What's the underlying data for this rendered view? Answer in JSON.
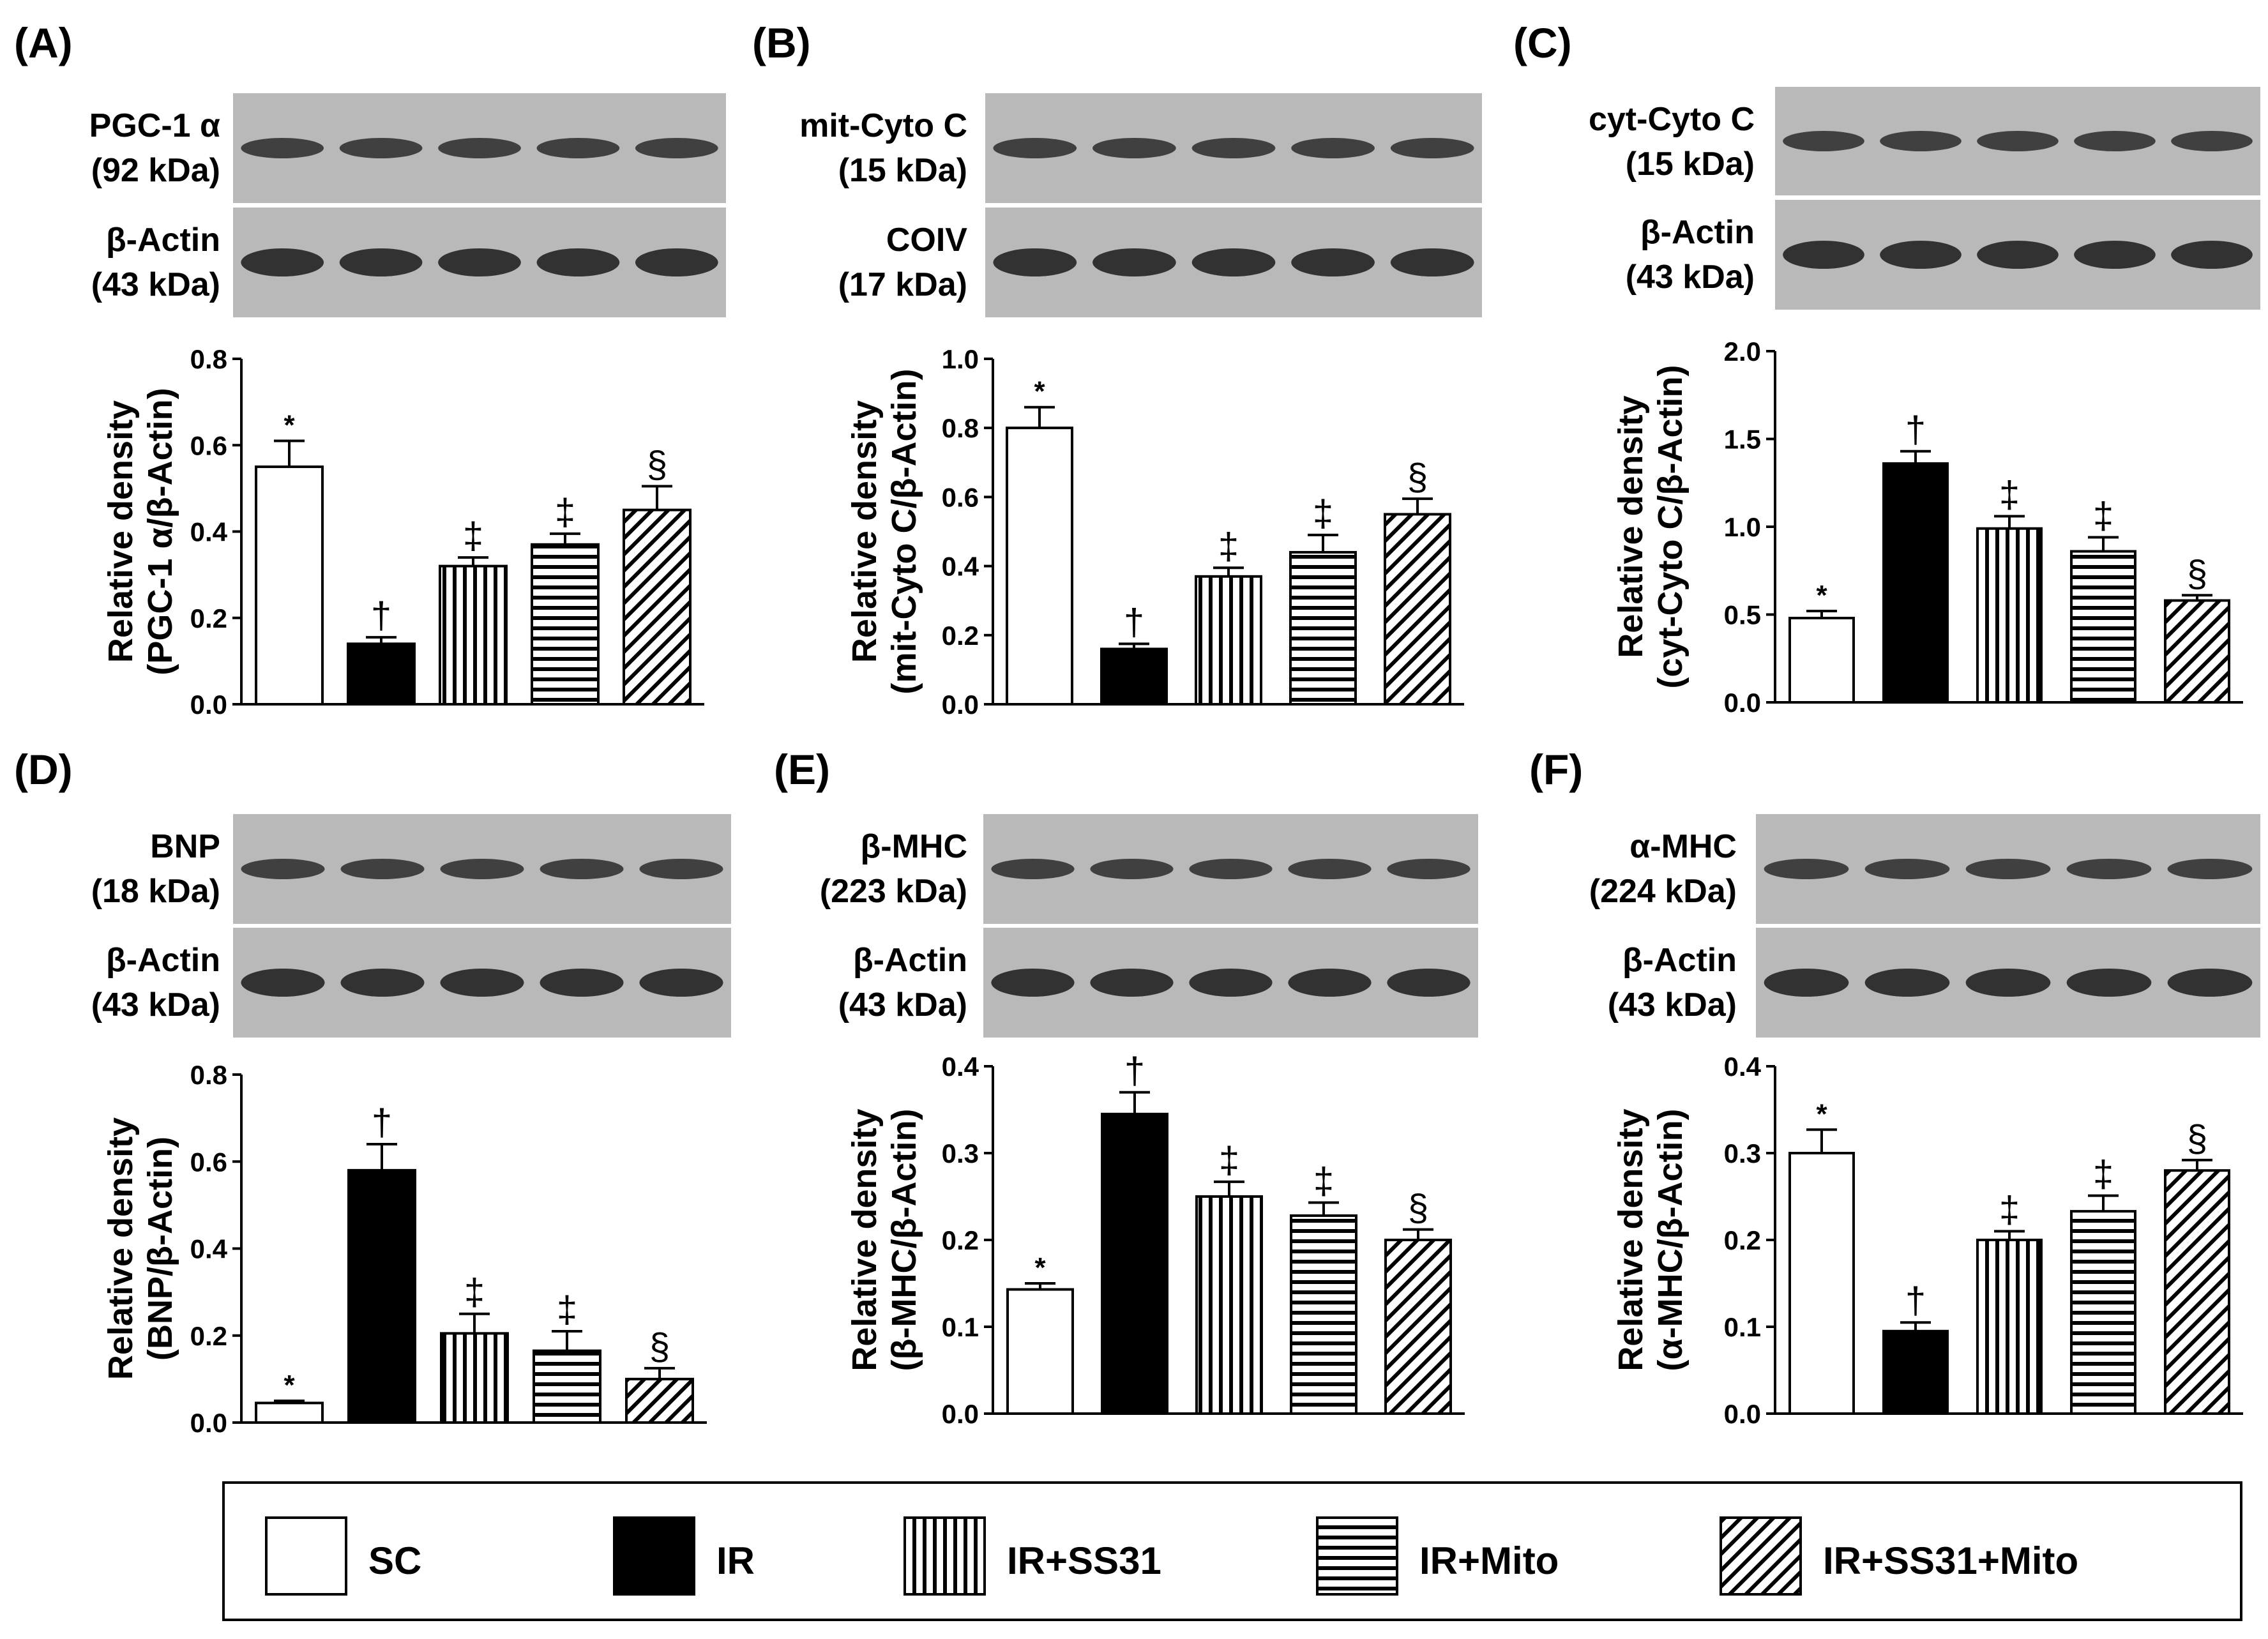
{
  "legend": {
    "items": [
      {
        "label": "SC",
        "pattern": "white"
      },
      {
        "label": "IR",
        "pattern": "black"
      },
      {
        "label": "IR+SS31",
        "pattern": "vertical"
      },
      {
        "label": "IR+Mito",
        "pattern": "horizontal"
      },
      {
        "label": "IR+SS31+Mito",
        "pattern": "diagonal"
      }
    ]
  },
  "chart_data": [
    {
      "panel": "(A)",
      "type": "bar",
      "blot_labels": [
        [
          "PGC-1 α",
          "(92 kDa)"
        ],
        [
          "β-Actin",
          "(43 kDa)"
        ]
      ],
      "ylabel": [
        "Relative density",
        "(PGC-1 α/β-Actin)"
      ],
      "ylim": [
        0,
        0.8
      ],
      "yticks": [
        "0.0",
        "0.2",
        "0.4",
        "0.6",
        "0.8"
      ],
      "categories": [
        "SC",
        "IR",
        "IR+SS31",
        "IR+Mito",
        "IR+SS31+Mito"
      ],
      "values": [
        0.55,
        0.14,
        0.32,
        0.37,
        0.45
      ],
      "errors": [
        0.06,
        0.015,
        0.02,
        0.025,
        0.055
      ],
      "annotations": [
        "*",
        "†",
        "‡",
        "‡",
        "§"
      ]
    },
    {
      "panel": "(B)",
      "type": "bar",
      "blot_labels": [
        [
          "mit-Cyto C",
          "(15 kDa)"
        ],
        [
          "COIV",
          "(17 kDa)"
        ]
      ],
      "ylabel": [
        "Relative density",
        "(mit-Cyto C/β-Actin)"
      ],
      "ylim": [
        0,
        1.0
      ],
      "yticks": [
        "0.0",
        "0.2",
        "0.4",
        "0.6",
        "0.8",
        "1.0"
      ],
      "categories": [
        "SC",
        "IR",
        "IR+SS31",
        "IR+Mito",
        "IR+SS31+Mito"
      ],
      "values": [
        0.8,
        0.16,
        0.37,
        0.44,
        0.55
      ],
      "errors": [
        0.06,
        0.015,
        0.025,
        0.05,
        0.045
      ],
      "annotations": [
        "*",
        "†",
        "‡",
        "‡",
        "§"
      ]
    },
    {
      "panel": "(C)",
      "type": "bar",
      "blot_labels": [
        [
          "cyt-Cyto C",
          "(15 kDa)"
        ],
        [
          "β-Actin",
          "(43 kDa)"
        ]
      ],
      "ylabel": [
        "Relative density",
        "(cyt-Cyto C/β-Actin)"
      ],
      "ylim": [
        0,
        2.0
      ],
      "yticks": [
        "0.0",
        "0.5",
        "1.0",
        "1.5",
        "2.0"
      ],
      "categories": [
        "SC",
        "IR",
        "IR+SS31",
        "IR+Mito",
        "IR+SS31+Mito"
      ],
      "values": [
        0.48,
        1.36,
        0.99,
        0.86,
        0.58
      ],
      "errors": [
        0.04,
        0.07,
        0.07,
        0.08,
        0.03
      ],
      "annotations": [
        "*",
        "†",
        "‡",
        "‡",
        "§"
      ]
    },
    {
      "panel": "(D)",
      "type": "bar",
      "blot_labels": [
        [
          "BNP",
          "(18 kDa)"
        ],
        [
          "β-Actin",
          "(43 kDa)"
        ]
      ],
      "ylabel": [
        "Relative density",
        "(BNP/β-Actin)"
      ],
      "ylim": [
        0,
        0.8
      ],
      "yticks": [
        "0.0",
        "0.2",
        "0.4",
        "0.6",
        "0.8"
      ],
      "categories": [
        "SC",
        "IR",
        "IR+SS31",
        "IR+Mito",
        "IR+SS31+Mito"
      ],
      "values": [
        0.045,
        0.58,
        0.205,
        0.165,
        0.1
      ],
      "errors": [
        0.005,
        0.06,
        0.045,
        0.045,
        0.025
      ],
      "annotations": [
        "*",
        "†",
        "‡",
        "‡",
        "§"
      ]
    },
    {
      "panel": "(E)",
      "type": "bar",
      "blot_labels": [
        [
          "β-MHC",
          "(223 kDa)"
        ],
        [
          "β-Actin",
          "(43 kDa)"
        ]
      ],
      "ylabel": [
        "Relative density",
        "(β-MHC/β-Actin)"
      ],
      "ylim": [
        0,
        0.4
      ],
      "yticks": [
        "0.0",
        "0.1",
        "0.2",
        "0.3",
        "0.4"
      ],
      "categories": [
        "SC",
        "IR",
        "IR+SS31",
        "IR+Mito",
        "IR+SS31+Mito"
      ],
      "values": [
        0.143,
        0.345,
        0.25,
        0.228,
        0.2
      ],
      "errors": [
        0.007,
        0.025,
        0.017,
        0.015,
        0.012
      ],
      "annotations": [
        "*",
        "†",
        "‡",
        "‡",
        "§"
      ]
    },
    {
      "panel": "(F)",
      "type": "bar",
      "blot_labels": [
        [
          "α-MHC",
          "(224 kDa)"
        ],
        [
          "β-Actin",
          "(43 kDa)"
        ]
      ],
      "ylabel": [
        "Relative density",
        "(α-MHC/β-Actin)"
      ],
      "ylim": [
        0,
        0.4
      ],
      "yticks": [
        "0.0",
        "0.1",
        "0.2",
        "0.3",
        "0.4"
      ],
      "categories": [
        "SC",
        "IR",
        "IR+SS31",
        "IR+Mito",
        "IR+SS31+Mito"
      ],
      "values": [
        0.3,
        0.095,
        0.2,
        0.233,
        0.28
      ],
      "errors": [
        0.027,
        0.01,
        0.01,
        0.018,
        0.012
      ],
      "annotations": [
        "*",
        "†",
        "‡",
        "‡",
        "§"
      ]
    }
  ]
}
